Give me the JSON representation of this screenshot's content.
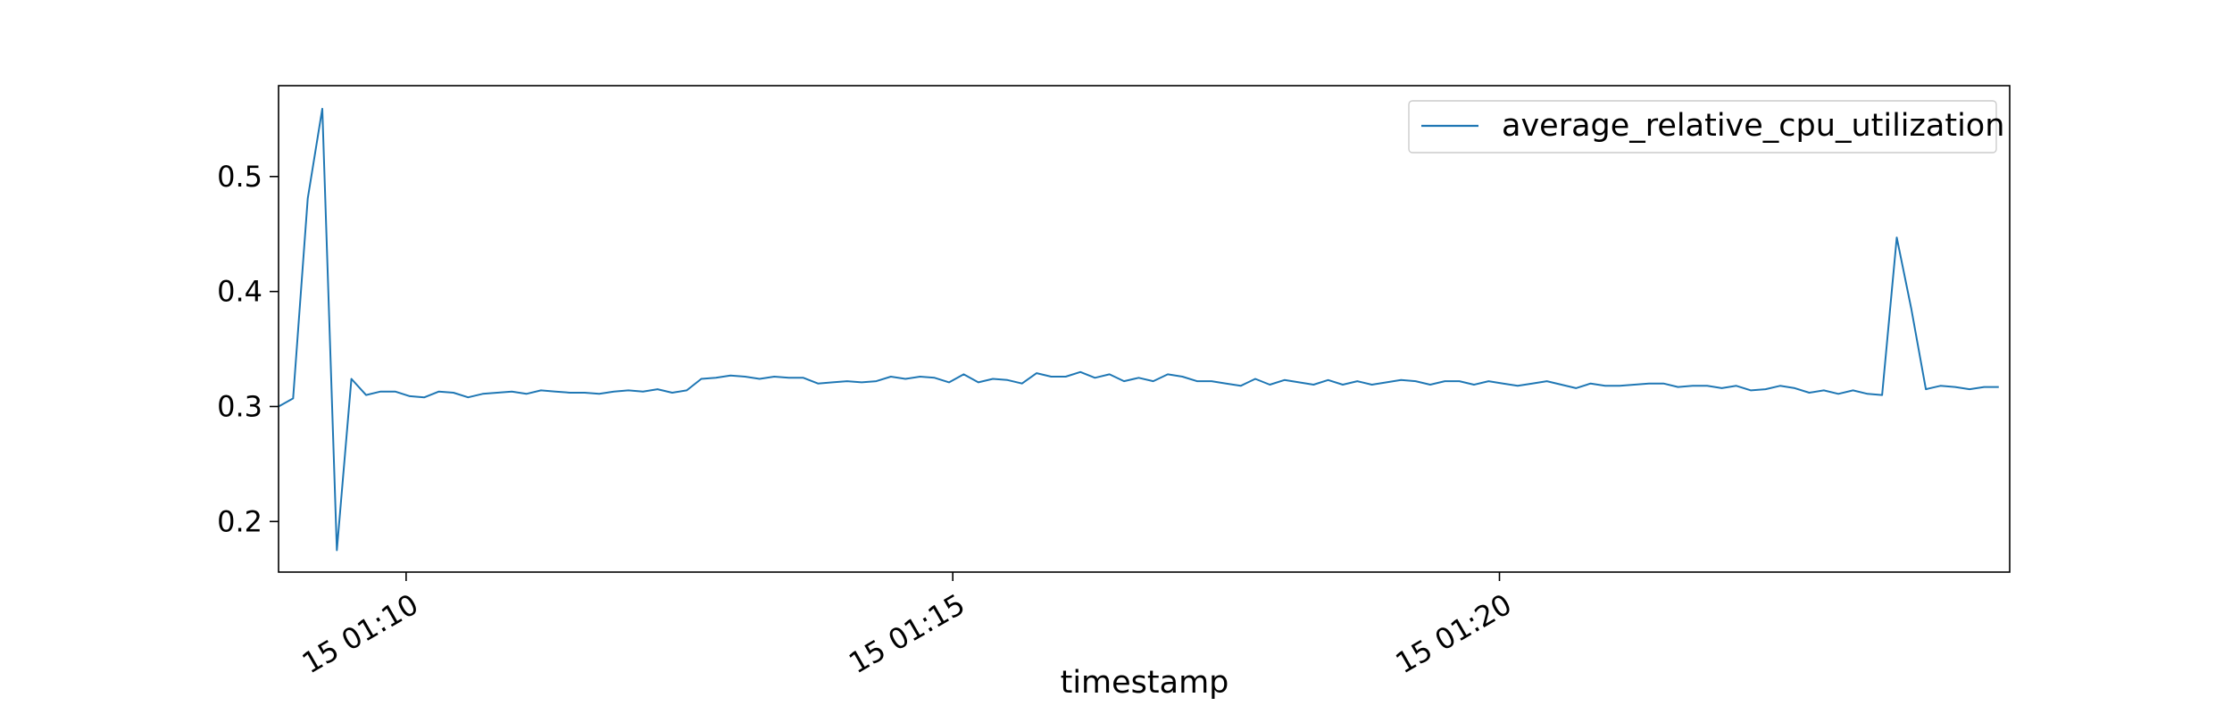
{
  "chart_data": {
    "type": "line",
    "title": "",
    "xlabel": "timestamp",
    "ylabel": "",
    "x_ticks": [
      "15 01:10",
      "15 01:15",
      "15 01:20"
    ],
    "y_ticks": [
      "0.2",
      "0.3",
      "0.4",
      "0.5"
    ],
    "ylim": [
      0.156,
      0.579
    ],
    "grid": false,
    "legend_position": "top-right",
    "x_start": "15 01:08:50",
    "x_end": "15 01:24:40",
    "sample_interval_seconds": 8,
    "series": [
      {
        "name": "average_relative_cpu_utilization",
        "color": "#1f77b4",
        "values": [
          0.3,
          0.307,
          0.481,
          0.559,
          0.175,
          0.324,
          0.31,
          0.313,
          0.313,
          0.309,
          0.308,
          0.313,
          0.312,
          0.308,
          0.311,
          0.312,
          0.313,
          0.311,
          0.314,
          0.313,
          0.312,
          0.312,
          0.311,
          0.313,
          0.314,
          0.313,
          0.315,
          0.312,
          0.314,
          0.324,
          0.325,
          0.327,
          0.326,
          0.324,
          0.326,
          0.325,
          0.325,
          0.32,
          0.321,
          0.322,
          0.321,
          0.322,
          0.326,
          0.324,
          0.326,
          0.325,
          0.321,
          0.328,
          0.321,
          0.324,
          0.323,
          0.32,
          0.329,
          0.326,
          0.326,
          0.33,
          0.325,
          0.328,
          0.322,
          0.325,
          0.322,
          0.328,
          0.326,
          0.322,
          0.322,
          0.32,
          0.318,
          0.324,
          0.319,
          0.323,
          0.321,
          0.319,
          0.323,
          0.319,
          0.322,
          0.319,
          0.321,
          0.323,
          0.322,
          0.319,
          0.322,
          0.322,
          0.319,
          0.322,
          0.32,
          0.318,
          0.32,
          0.322,
          0.319,
          0.316,
          0.32,
          0.318,
          0.318,
          0.319,
          0.32,
          0.32,
          0.317,
          0.318,
          0.318,
          0.316,
          0.318,
          0.314,
          0.315,
          0.318,
          0.316,
          0.312,
          0.314,
          0.311,
          0.314,
          0.311,
          0.31,
          0.447,
          0.385,
          0.315,
          0.318,
          0.317,
          0.315,
          0.317,
          0.317
        ]
      }
    ]
  }
}
